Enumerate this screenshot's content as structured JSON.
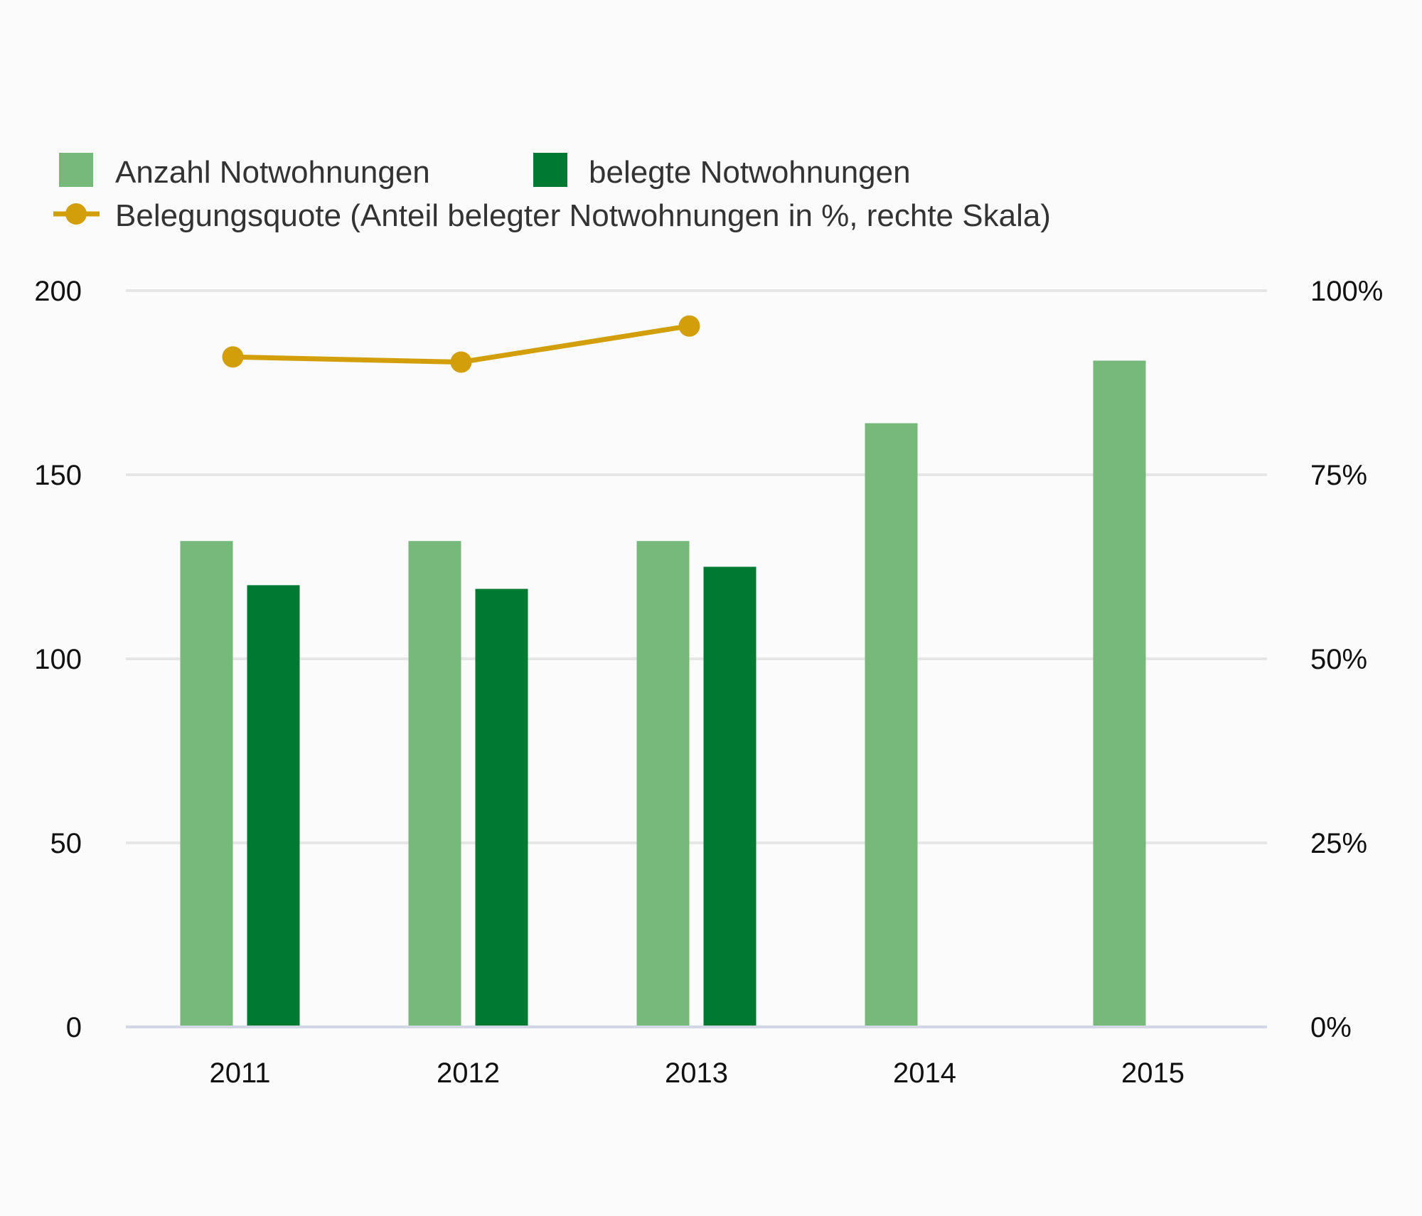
{
  "chart_data": {
    "type": "bar",
    "categories": [
      "2011",
      "2012",
      "2013",
      "2014",
      "2015"
    ],
    "series": [
      {
        "name": "Anzahl Notwohnungen",
        "type": "bar",
        "axis": "left",
        "color": "#76b97b",
        "values": [
          132,
          132,
          132,
          164,
          181
        ]
      },
      {
        "name": "belegte Notwohnungen",
        "type": "bar",
        "axis": "left",
        "color": "#007a33",
        "values": [
          120,
          119,
          125,
          null,
          null
        ]
      },
      {
        "name": "Belegungsquote (Anteil belegter Notwohnungen in %, rechte Skala)",
        "type": "line",
        "axis": "right",
        "color": "#d29f0b",
        "values": [
          91,
          90.3,
          95.2,
          null,
          null
        ]
      }
    ],
    "yleft": {
      "ticks": [
        0,
        50,
        100,
        150,
        200
      ],
      "ylim": [
        0,
        200
      ]
    },
    "yright": {
      "ticks": [
        0,
        25,
        50,
        75,
        100
      ],
      "tick_labels": [
        "0%",
        "25%",
        "50%",
        "75%",
        "100%"
      ],
      "ylim": [
        0,
        100
      ]
    },
    "grid": true,
    "legend_position": "top-left"
  }
}
